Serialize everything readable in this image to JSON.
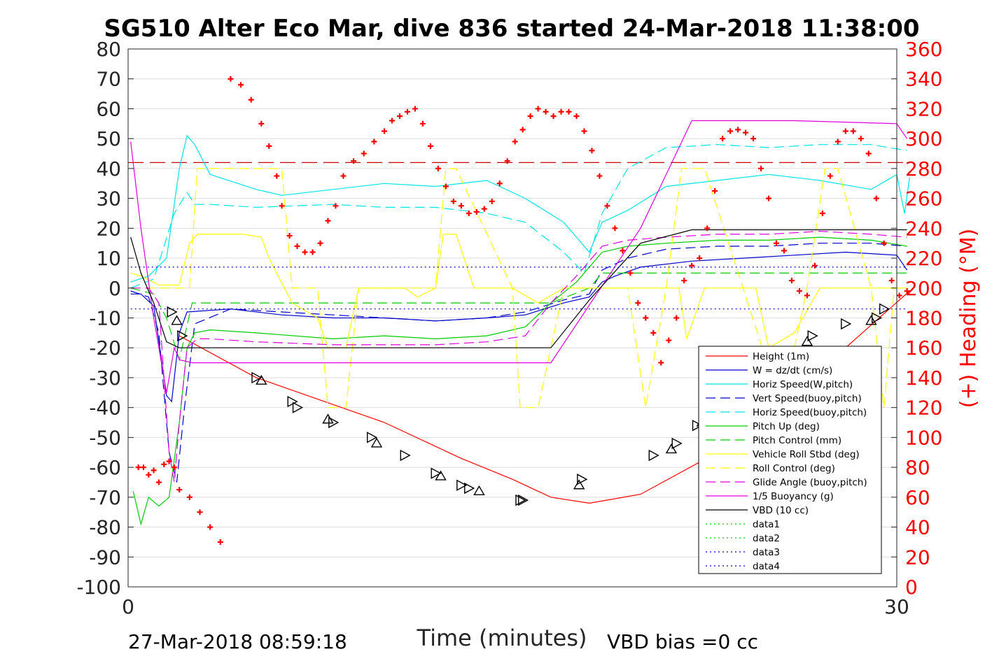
{
  "chart_data": {
    "type": "line",
    "title": "SG510 Alter Eco Mar, dive 836 started 24-Mar-2018 11:38:00",
    "xlabel": "Time (minutes)",
    "ylabel_right": "(+) Heading (°M)",
    "xlim": [
      0,
      30
    ],
    "ylim": [
      -100,
      80
    ],
    "ylim_right": [
      0,
      360
    ],
    "x_ticks": [
      "0",
      "30"
    ],
    "y_ticks": [
      "80",
      "70",
      "60",
      "50",
      "40",
      "30",
      "20",
      "10",
      "0",
      "-10",
      "-20",
      "-30",
      "-40",
      "-50",
      "-60",
      "-70",
      "-80",
      "-90",
      "-100"
    ],
    "y_ticks_right": [
      "360",
      "340",
      "320",
      "300",
      "280",
      "260",
      "240",
      "220",
      "200",
      "180",
      "160",
      "140",
      "120",
      "100",
      "80",
      "60",
      "40",
      "20",
      "0"
    ],
    "grid": "horizontal",
    "legend_position": "bottom-right",
    "footer_left": "27-Mar-2018 08:59:18",
    "footer_right": "VBD bias =0 cc",
    "colors": {
      "red": "#ff0000",
      "blue": "#0000cc",
      "cyan": "#00e5e5",
      "green": "#00cc00",
      "yellow": "#ffff00",
      "magenta": "#e000e0",
      "black": "#000000",
      "darkred": "#cc0000"
    },
    "series": [
      {
        "name": "Height (1m)",
        "color": "#ff0000",
        "dash": "solid",
        "x": [
          2.0,
          5,
          10,
          13,
          15,
          16.5,
          18,
          20,
          23,
          26,
          28,
          30.5
        ],
        "y": [
          -16,
          -30,
          -45,
          -57,
          -64,
          -70,
          -72,
          -69,
          -55,
          -38,
          -20,
          -1
        ]
      },
      {
        "name": "W = dz/dt (cm/s)",
        "color": "#0000cc",
        "dash": "solid",
        "x": [
          0.1,
          0.5,
          1.0,
          1.5,
          1.7,
          2.0,
          2.3,
          4,
          6,
          8,
          10,
          12,
          14,
          15.5,
          17,
          18,
          18.5,
          19,
          20,
          22,
          24,
          26,
          28,
          30,
          30.4
        ],
        "y": [
          -2,
          -2,
          -6,
          -36,
          -38,
          -15,
          -8,
          -7,
          -9,
          -10,
          -10,
          -11,
          -10,
          -9,
          -5,
          -3,
          2,
          4,
          7,
          9,
          10,
          11,
          12,
          11,
          6
        ]
      },
      {
        "name": "Horiz Speed(W,pitch)",
        "color": "#00e5e5",
        "dash": "solid",
        "x": [
          0.1,
          0.8,
          1.5,
          2.0,
          2.3,
          2.6,
          3.2,
          5,
          6,
          8,
          10,
          12,
          14,
          15.5,
          17,
          18,
          18.5,
          19.5,
          21,
          23,
          25,
          27,
          29,
          30,
          30.3,
          30.5
        ],
        "y": [
          2,
          4,
          10,
          40,
          51,
          48,
          38,
          33,
          31,
          33,
          35,
          34,
          36,
          30,
          22,
          12,
          22,
          26,
          34,
          36,
          38,
          36,
          33,
          38,
          25,
          37
        ]
      },
      {
        "name": "Vert Speed(buoy,pitch)",
        "color": "#0000cc",
        "dash": "dash",
        "x": [
          0.1,
          0.8,
          1.2,
          1.6,
          1.9,
          2.2,
          2.6,
          4,
          6,
          8,
          10,
          12,
          14,
          15.5,
          17,
          18,
          18.5,
          19.5,
          21,
          23,
          25,
          27,
          29,
          30.4
        ],
        "y": [
          -1,
          -3,
          -15,
          -55,
          -65,
          -40,
          -12,
          -7,
          -8,
          -9,
          -10,
          -11,
          -10,
          -8,
          -4,
          -2,
          6,
          10,
          13,
          14,
          14,
          15,
          15,
          14
        ]
      },
      {
        "name": "Horiz Speed(buoy,pitch)",
        "color": "#00e5e5",
        "dash": "dash",
        "x": [
          0.1,
          1.0,
          1.8,
          2.3,
          2.6,
          3.2,
          5,
          8,
          10,
          12,
          14,
          15.5,
          17,
          17.8,
          18.5,
          19.5,
          21,
          23,
          25,
          27,
          29,
          30.4
        ],
        "y": [
          0,
          3,
          25,
          32,
          28,
          28,
          27,
          28,
          27,
          27,
          25,
          22,
          12,
          5,
          25,
          40,
          47,
          48,
          47,
          48,
          48,
          46
        ]
      },
      {
        "name": "Pitch Up (deg)",
        "color": "#00cc00",
        "dash": "solid",
        "x": [
          0.2,
          0.5,
          0.8,
          1.2,
          1.6,
          2.0,
          2.3,
          2.6,
          3.2,
          5,
          8,
          10,
          12,
          14,
          15.5,
          16.5,
          17.5,
          18.5,
          19.5,
          21,
          23,
          25,
          27,
          29,
          30.4
        ],
        "y": [
          -68,
          -79,
          -70,
          -73,
          -70,
          -45,
          -20,
          -15,
          -14,
          -15,
          -17,
          -16,
          -17,
          -16,
          -13,
          -5,
          2,
          12,
          14,
          15,
          16,
          16,
          17,
          16,
          14
        ]
      },
      {
        "name": "Pitch Control (mm)",
        "color": "#00cc00",
        "dash": "dash",
        "x": [
          0.1,
          1.0,
          1.5,
          2.0,
          2.5,
          3,
          8,
          12,
          15,
          16.5,
          18,
          18.5,
          30.4
        ],
        "y": [
          0,
          -2,
          -10,
          -24,
          -5,
          -5,
          -5,
          -5,
          -5,
          -5,
          0,
          5,
          5
        ]
      },
      {
        "name": "Vehicle Roll Stbd (deg)",
        "color": "#ffff00",
        "dash": "solid",
        "x": [
          0.1,
          0.5,
          1.2,
          2.0,
          2.4,
          2.7,
          3.3,
          4.5,
          5.2,
          5.5,
          6.1,
          6.4,
          7.4,
          7.8,
          8.5,
          9.0,
          9.5,
          10.8,
          11.3,
          12.0,
          12.3,
          12.8,
          13.5,
          15.0,
          16.0,
          17,
          18,
          18.5,
          20,
          21.5,
          21.8,
          22.5,
          23.3,
          24.5,
          25.0,
          26.0,
          27.0,
          28.0,
          30.4
        ],
        "y": [
          5,
          4,
          1,
          1,
          15,
          18,
          18,
          18,
          17,
          10,
          0,
          -5,
          -10,
          -20,
          -20,
          0,
          0,
          0,
          -3,
          0,
          18,
          18,
          0,
          0,
          -5,
          0,
          0,
          0,
          0,
          0,
          -17,
          0,
          0,
          0,
          -20,
          -15,
          0,
          0,
          0
        ]
      },
      {
        "name": "Roll Control (deg)",
        "color": "#ffff00",
        "dash": "dash",
        "x": [
          0.1,
          1.0,
          2.4,
          2.7,
          3.2,
          6.0,
          6.4,
          7.4,
          7.8,
          8.5,
          9.0,
          10.0,
          12.0,
          12.4,
          12.8,
          15.0,
          15.3,
          16.0,
          17,
          19.5,
          20.2,
          21,
          21.6,
          22.5,
          24,
          25.5,
          26.5,
          27.2,
          27.7,
          29,
          29.5,
          29.9,
          30.4
        ],
        "y": [
          0,
          0,
          0,
          40,
          40,
          40,
          0,
          0,
          -40,
          -40,
          0,
          0,
          0,
          40,
          40,
          0,
          -40,
          -40,
          0,
          0,
          -40,
          0,
          40,
          40,
          0,
          -40,
          0,
          40,
          40,
          0,
          -40,
          0,
          0
        ]
      },
      {
        "name": "Glide Angle (buoy,pitch)",
        "color": "#e000e0",
        "dash": "dash",
        "x": [
          0.1,
          0.8,
          1.2,
          1.6,
          1.8,
          2.0,
          2.3,
          2.7,
          3.2,
          5,
          8,
          10,
          12,
          14,
          15.5,
          16.5,
          17.5,
          18.5,
          19.5,
          21,
          23,
          25,
          27,
          29,
          30.4
        ],
        "y": [
          0,
          0,
          -5,
          -55,
          -65,
          -45,
          -20,
          -17,
          -17,
          -18,
          -19,
          -19,
          -19,
          -18,
          -16,
          -5,
          4,
          14,
          16,
          17,
          18,
          18,
          19,
          18,
          17
        ]
      },
      {
        "name": "1/5 Buoyancy (g)",
        "color": "#e000e0",
        "dash": "solid",
        "x": [
          0.1,
          0.5,
          1.0,
          1.5,
          1.8,
          2.0,
          2.5,
          5,
          10,
          15,
          16.5,
          20,
          22,
          26,
          30,
          30.4
        ],
        "y": [
          49,
          20,
          -10,
          -35,
          -20,
          -24,
          -25,
          -25,
          -25,
          -25,
          -25,
          20,
          56,
          56,
          55,
          50
        ]
      },
      {
        "name": "VBD (10 cc)",
        "color": "#000000",
        "dash": "solid",
        "x": [
          0.1,
          0.5,
          1.0,
          1.5,
          2.0,
          5,
          10,
          15,
          16.5,
          18,
          20,
          22,
          26,
          30,
          30.4
        ],
        "y": [
          17,
          5,
          -5,
          -18,
          -20,
          -20,
          -20,
          -20,
          -20,
          -4,
          15,
          19.5,
          19.5,
          19.5,
          19.5
        ]
      },
      {
        "name": "data1",
        "color": "#00cc00",
        "dash": "dot",
        "x": [],
        "y": []
      },
      {
        "name": "data2",
        "color": "#00cc00",
        "dash": "dot",
        "x": [],
        "y": []
      },
      {
        "name": "data3",
        "color": "#0000cc",
        "dash": "dot",
        "x": [
          0.1,
          30.4
        ],
        "y": [
          7,
          7
        ]
      },
      {
        "name": "data4",
        "color": "#0000cc",
        "dash": "dot",
        "x": [
          0.1,
          30.4
        ],
        "y": [
          -7,
          -7
        ]
      }
    ],
    "reference_line": {
      "y": 42,
      "color": "#cc0000",
      "dash": "dash"
    },
    "triangle_markers": {
      "color": "#000000",
      "x": [
        1.7,
        1.9,
        2.1,
        5.0,
        5.2,
        6.4,
        6.6,
        7.8,
        8.0,
        9.5,
        9.7,
        10.8,
        12.0,
        12.2,
        13.0,
        13.3,
        13.7,
        15.3,
        15.4,
        17.6,
        17.7,
        20.5,
        21.2,
        21.4,
        22.2,
        22.4,
        24.0,
        24.2,
        25.2,
        25.4,
        26.0,
        26.5,
        26.7,
        28.0,
        29.0,
        29.2,
        29.5
      ],
      "y": [
        -8,
        -11,
        -16,
        -30,
        -31,
        -38,
        -40,
        -44,
        -45,
        -50,
        -52,
        -56,
        -62,
        -63,
        -66,
        -67,
        -68,
        -71,
        -71,
        -66,
        -64,
        -56,
        -54,
        -52,
        -46,
        -45,
        -38,
        -37,
        -35,
        -28,
        -26,
        -18,
        -16,
        -12,
        -11,
        -10,
        -7
      ]
    },
    "heading_points": {
      "color": "#ff0000",
      "x": [
        0.4,
        0.6,
        0.8,
        1.0,
        1.2,
        1.4,
        1.6,
        1.8,
        2.0,
        2.4,
        2.8,
        3.2,
        3.6,
        4.0,
        4.4,
        4.8,
        5.2,
        5.5,
        5.8,
        6.0,
        6.3,
        6.6,
        6.9,
        7.2,
        7.5,
        7.8,
        8.1,
        8.4,
        8.8,
        9.2,
        9.6,
        10.0,
        10.3,
        10.6,
        10.9,
        11.2,
        11.5,
        11.8,
        12.1,
        12.4,
        12.7,
        13.0,
        13.3,
        13.6,
        13.9,
        14.2,
        14.5,
        14.8,
        15.1,
        15.4,
        15.7,
        16.0,
        16.3,
        16.6,
        16.9,
        17.2,
        17.5,
        17.8,
        18.1,
        18.4,
        18.7,
        19.0,
        19.3,
        19.6,
        19.9,
        20.2,
        20.5,
        20.8,
        21.1,
        21.4,
        21.7,
        22.0,
        22.3,
        22.6,
        22.9,
        23.2,
        23.5,
        23.8,
        24.1,
        24.4,
        24.7,
        25.0,
        25.3,
        25.6,
        25.9,
        26.2,
        26.5,
        26.8,
        27.1,
        27.4,
        27.7,
        28.0,
        28.3,
        28.6,
        28.9,
        29.2,
        29.5,
        29.8,
        30.1,
        30.4
      ],
      "y": [
        80,
        80,
        75,
        78,
        70,
        82,
        84,
        80,
        65,
        60,
        50,
        40,
        30,
        340,
        336,
        326,
        310,
        295,
        275,
        255,
        235,
        228,
        224,
        224,
        230,
        245,
        255,
        275,
        285,
        290,
        298,
        305,
        312,
        315,
        318,
        320,
        310,
        295,
        280,
        268,
        258,
        255,
        250,
        251,
        253,
        258,
        270,
        285,
        298,
        306,
        315,
        320,
        318,
        315,
        318,
        318,
        315,
        305,
        292,
        275,
        255,
        240,
        225,
        210,
        190,
        180,
        170,
        150,
        165,
        180,
        205,
        215,
        220,
        240,
        265,
        300,
        305,
        306,
        304,
        300,
        280,
        260,
        230,
        225,
        205,
        198,
        195,
        215,
        250,
        275,
        298,
        305,
        305,
        300,
        290,
        260,
        230,
        205,
        195,
        198
      ]
    }
  }
}
